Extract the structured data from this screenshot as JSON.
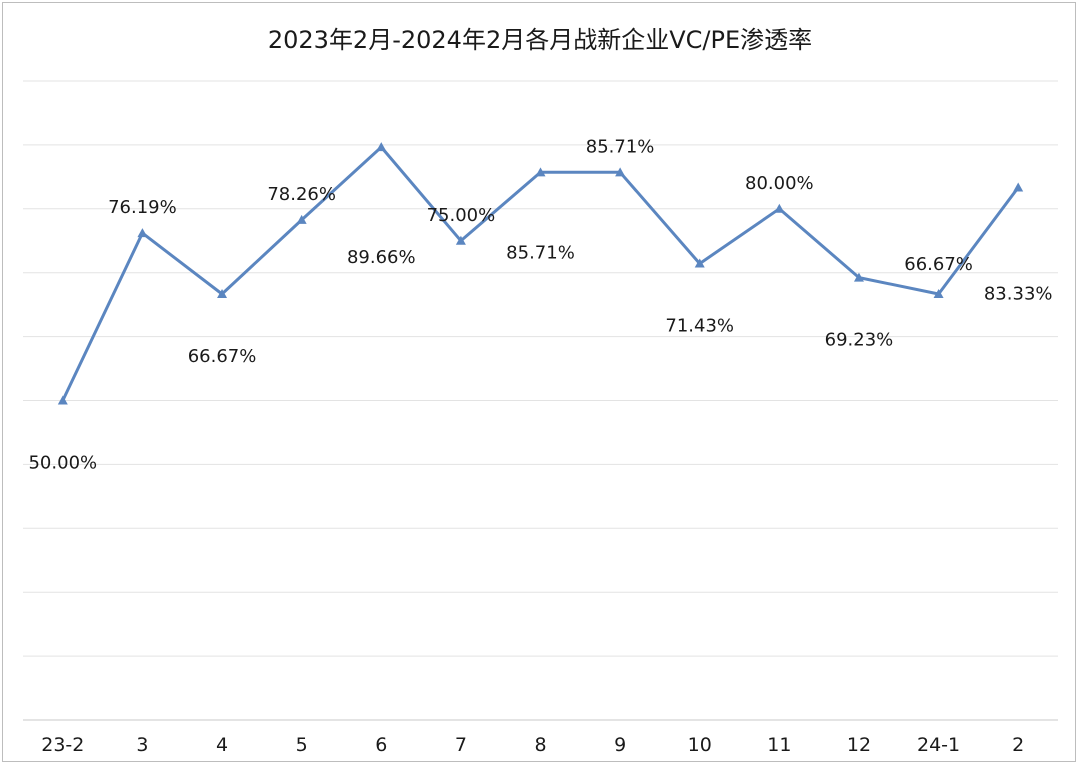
{
  "chart_data": {
    "type": "line",
    "title": "2023年2月-2024年2月各月战新企业VC/PE渗透率",
    "categories": [
      "23-2",
      "3",
      "4",
      "5",
      "6",
      "7",
      "8",
      "9",
      "10",
      "11",
      "12",
      "24-1",
      "2"
    ],
    "series": [
      {
        "values": [
          50.0,
          76.19,
          66.67,
          78.26,
          89.66,
          75.0,
          85.71,
          85.71,
          71.43,
          80.0,
          69.23,
          66.67,
          83.33
        ],
        "labels": [
          "50.00%",
          "76.19%",
          "66.67%",
          "78.26%",
          "89.66%",
          "75.00%",
          "85.71%",
          "85.71%",
          "71.43%",
          "80.00%",
          "69.23%",
          "66.67%",
          "83.33%"
        ],
        "color": "#5b86c0",
        "marker": "triangle"
      }
    ],
    "ylim": [
      0,
      100
    ],
    "y_gridlines": 10,
    "grid": true,
    "y_tick_labels_shown": false,
    "legend": "none"
  }
}
